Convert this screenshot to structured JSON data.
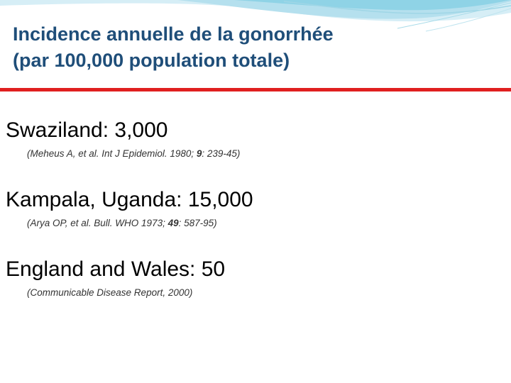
{
  "slide": {
    "title_line1": "Incidence annuelle de la gonorrhée",
    "title_line2": "(par 100,000 population totale)",
    "accent_color": "#1f4e79",
    "rule_color": "#e02020",
    "decoration_color": "#8fd3e6"
  },
  "entries": [
    {
      "location": "Swaziland: 3,000",
      "ref_pre": "(Meheus A, et al. Int J Epidemiol. 1980; ",
      "ref_vol": "9",
      "ref_post": ": 239-45)"
    },
    {
      "location": "Kampala, Uganda: 15,000",
      "ref_pre": "(Arya OP, et al. Bull. WHO 1973; ",
      "ref_vol": "49",
      "ref_post": ": 587-95)"
    },
    {
      "location": "England and Wales: 50",
      "ref_pre": "(Communicable Disease Report, 2000)",
      "ref_vol": "",
      "ref_post": ""
    }
  ]
}
